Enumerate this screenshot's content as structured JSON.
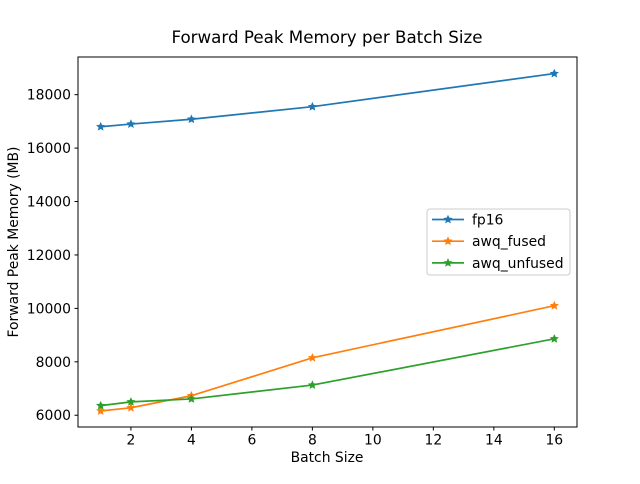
{
  "figure": {
    "background": "#ffffff",
    "text_color": "#000000",
    "spine_color": "#000000",
    "legend_border_color": "#cccccc",
    "legend_background": "#ffffff"
  },
  "chart_data": {
    "type": "line",
    "title": "Forward Peak Memory per Batch Size",
    "xlabel": "Batch Size",
    "ylabel": "Forward Peak Memory (MB)",
    "x": [
      1,
      2,
      4,
      8,
      16
    ],
    "series": [
      {
        "name": "fp16",
        "color": "#1f77b4",
        "values": [
          16800,
          16900,
          17080,
          17550,
          18790
        ]
      },
      {
        "name": "awq_fused",
        "color": "#ff7f0e",
        "values": [
          6160,
          6280,
          6730,
          8150,
          10100
        ]
      },
      {
        "name": "awq_unfused",
        "color": "#2ca02c",
        "values": [
          6360,
          6500,
          6610,
          7130,
          8860
        ]
      }
    ],
    "marker": "star",
    "xlim": [
      0.25,
      16.75
    ],
    "ylim": [
      5560,
      19410
    ],
    "xticks": [
      2,
      4,
      6,
      8,
      10,
      12,
      14,
      16
    ],
    "yticks": [
      6000,
      8000,
      10000,
      12000,
      14000,
      16000,
      18000
    ],
    "grid": false,
    "legend_position": "center-right"
  }
}
